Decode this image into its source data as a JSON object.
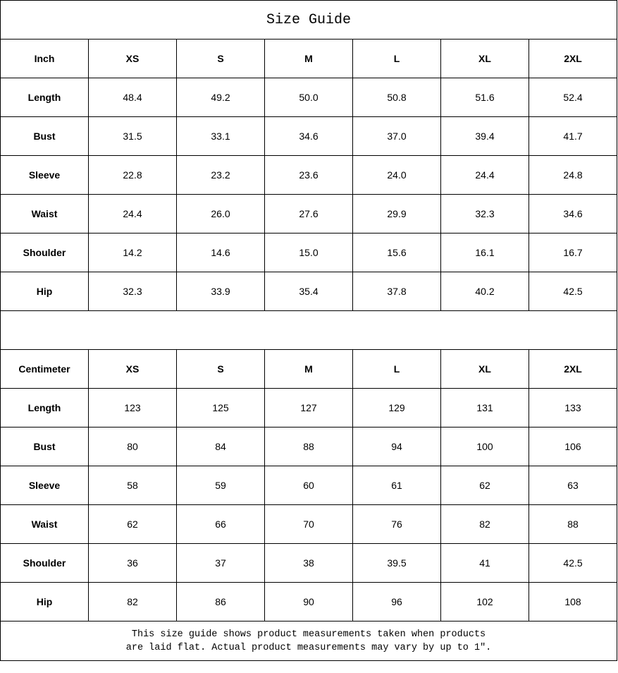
{
  "title": "Size Guide",
  "sizes": [
    "XS",
    "S",
    "M",
    "L",
    "XL",
    "2XL"
  ],
  "inch_table": {
    "unit_label": "Inch",
    "rows": [
      {
        "label": "Length",
        "values": [
          "48.4",
          "49.2",
          "50.0",
          "50.8",
          "51.6",
          "52.4"
        ]
      },
      {
        "label": "Bust",
        "values": [
          "31.5",
          "33.1",
          "34.6",
          "37.0",
          "39.4",
          "41.7"
        ]
      },
      {
        "label": "Sleeve",
        "values": [
          "22.8",
          "23.2",
          "23.6",
          "24.0",
          "24.4",
          "24.8"
        ]
      },
      {
        "label": "Waist",
        "values": [
          "24.4",
          "26.0",
          "27.6",
          "29.9",
          "32.3",
          "34.6"
        ]
      },
      {
        "label": "Shoulder",
        "values": [
          "14.2",
          "14.6",
          "15.0",
          "15.6",
          "16.1",
          "16.7"
        ]
      },
      {
        "label": "Hip",
        "values": [
          "32.3",
          "33.9",
          "35.4",
          "37.8",
          "40.2",
          "42.5"
        ]
      }
    ]
  },
  "cm_table": {
    "unit_label": "Centimeter",
    "rows": [
      {
        "label": "Length",
        "values": [
          "123",
          "125",
          "127",
          "129",
          "131",
          "133"
        ]
      },
      {
        "label": "Bust",
        "values": [
          "80",
          "84",
          "88",
          "94",
          "100",
          "106"
        ]
      },
      {
        "label": "Sleeve",
        "values": [
          "58",
          "59",
          "60",
          "61",
          "62",
          "63"
        ]
      },
      {
        "label": "Waist",
        "values": [
          "62",
          "66",
          "70",
          "76",
          "82",
          "88"
        ]
      },
      {
        "label": "Shoulder",
        "values": [
          "36",
          "37",
          "38",
          "39.5",
          "41",
          "42.5"
        ]
      },
      {
        "label": "Hip",
        "values": [
          "82",
          "86",
          "90",
          "96",
          "102",
          "108"
        ]
      }
    ]
  },
  "note": {
    "line1": "This size guide shows product measurements taken when products",
    "line2": "are laid flat. Actual product measurements may vary by up to 1″."
  }
}
